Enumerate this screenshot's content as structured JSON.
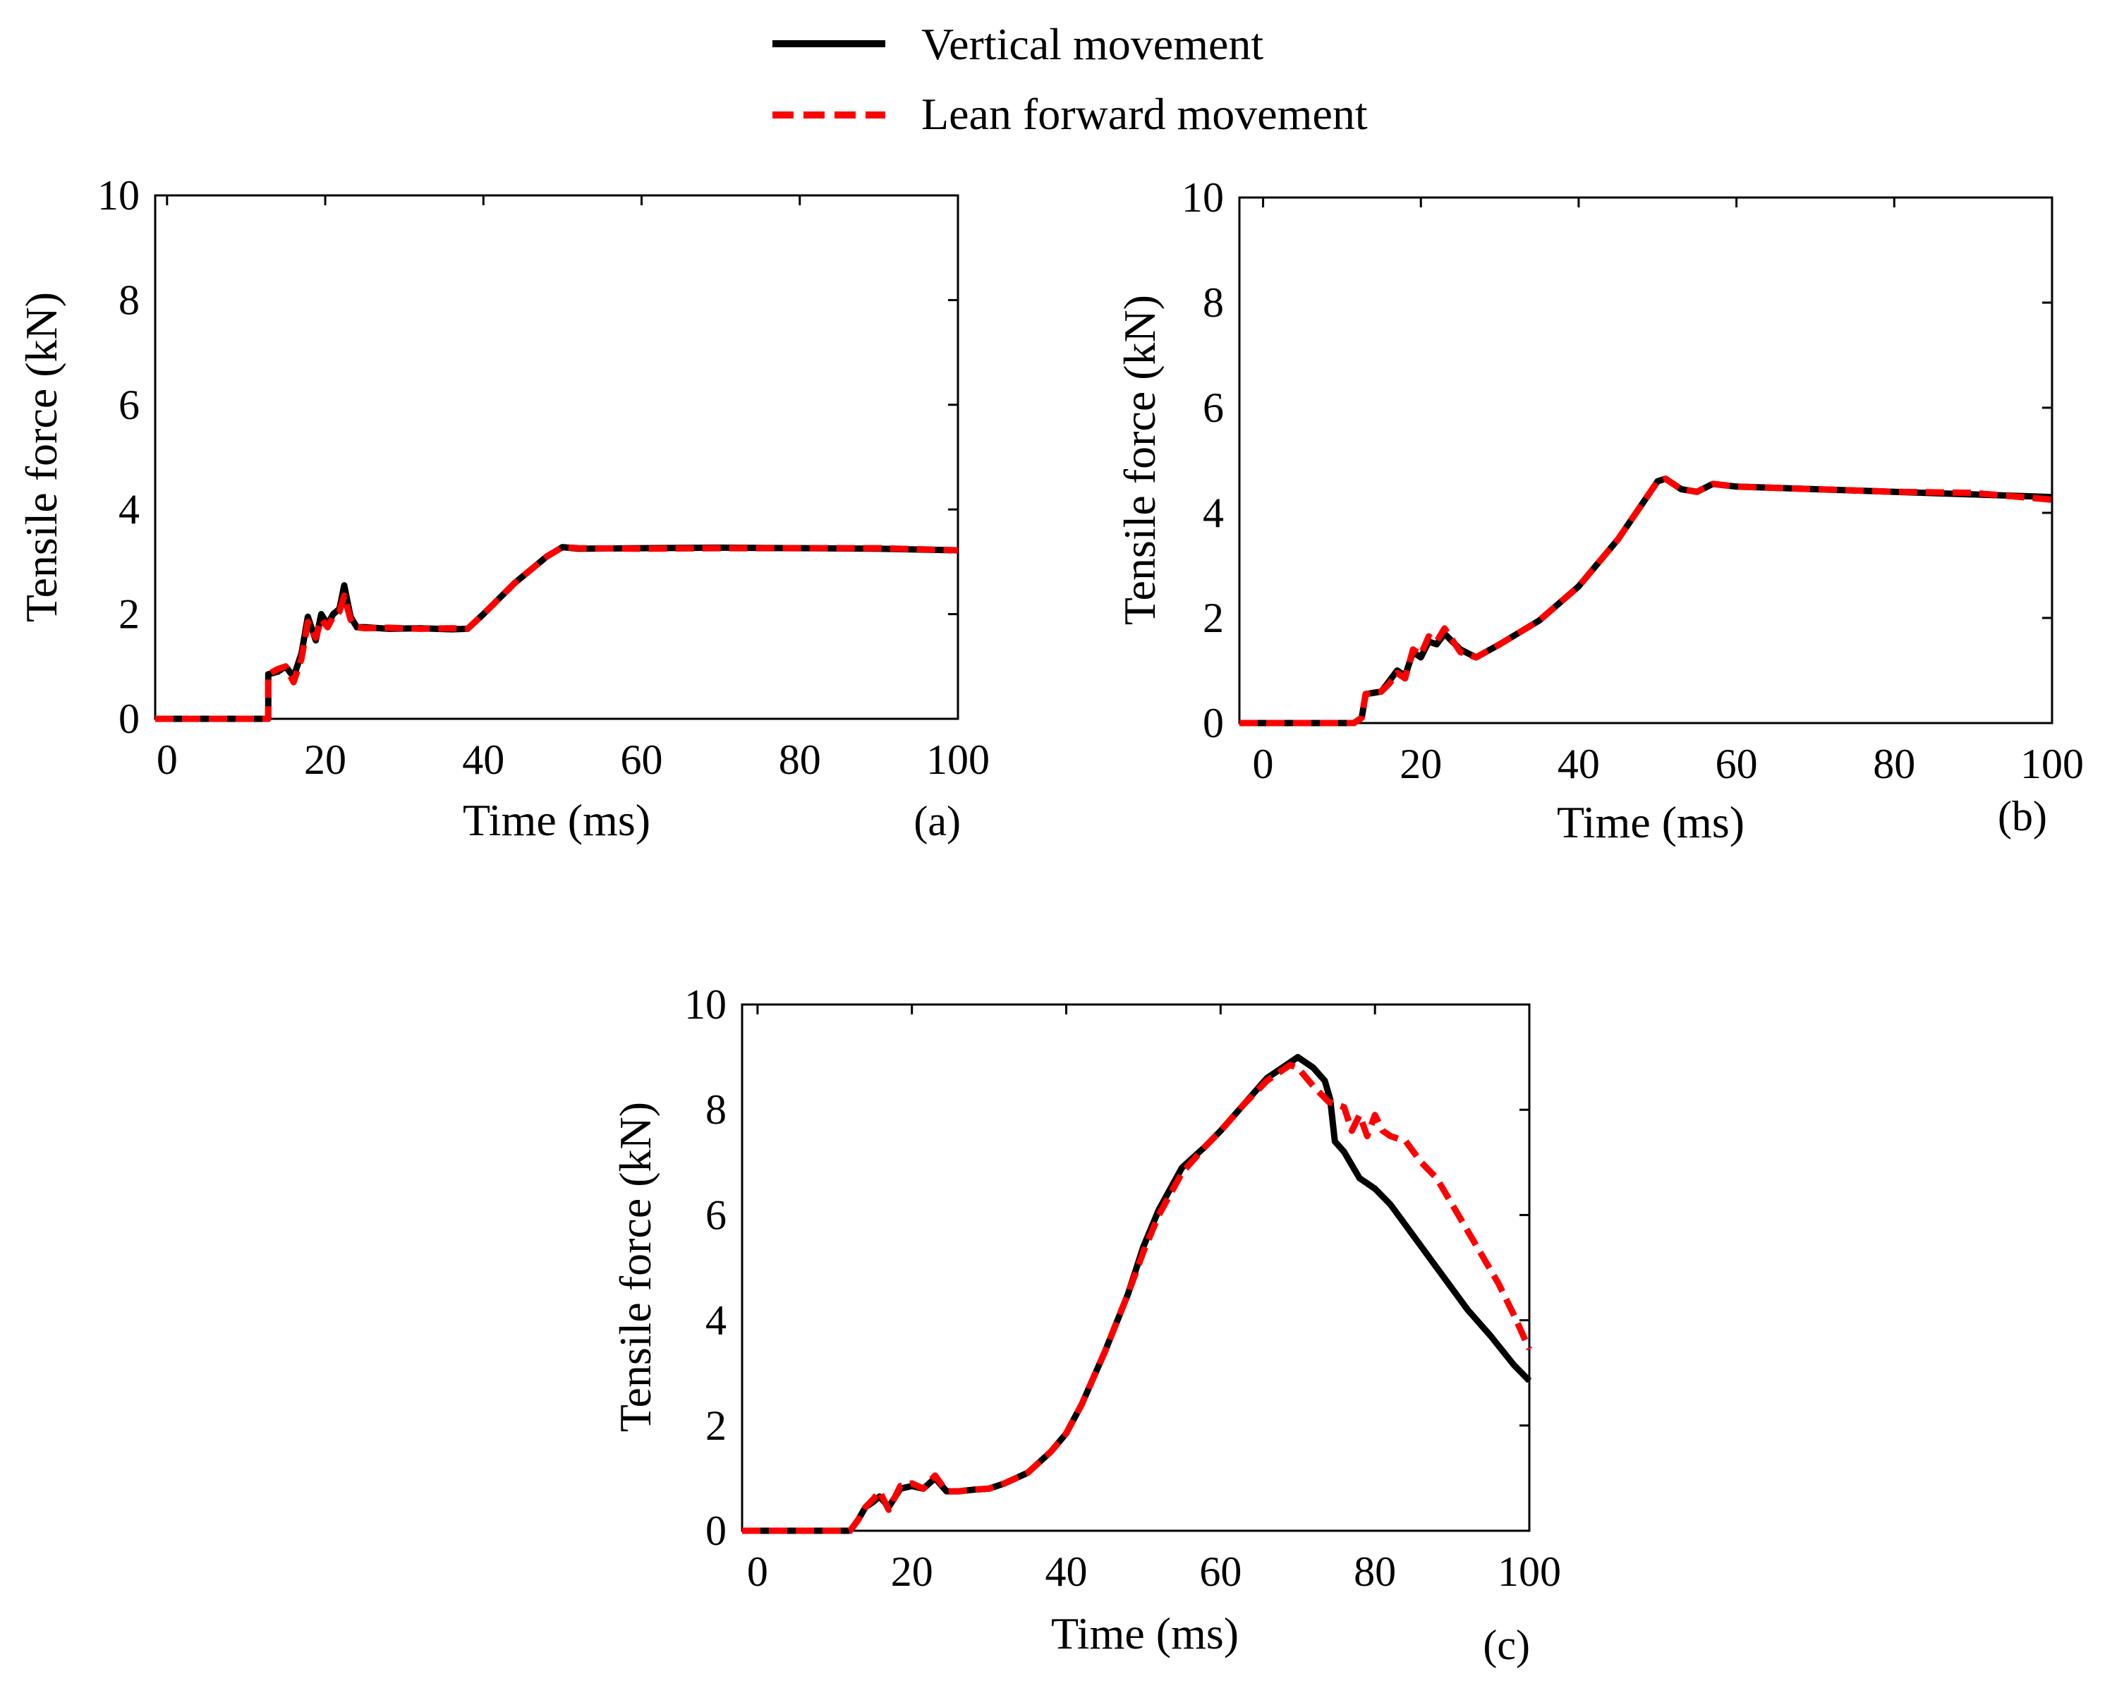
{
  "legend": {
    "items": [
      {
        "label": "Vertical movement",
        "color": "#000000",
        "style": "solid"
      },
      {
        "label": "Lean forward movement",
        "color": "#ff0000",
        "style": "dashed"
      }
    ]
  },
  "chart_data": [
    {
      "type": "line",
      "panel_label": "(a)",
      "xlabel": "Time (ms)",
      "ylabel": "Tensile force (kN)",
      "xlim": [
        -1.5,
        100
      ],
      "ylim": [
        0,
        10
      ],
      "xticks": [
        0,
        20,
        40,
        60,
        80,
        100
      ],
      "yticks": [
        0,
        2,
        4,
        6,
        8,
        10
      ],
      "series": [
        {
          "name": "Vertical movement",
          "color": "#000000",
          "dash": "solid",
          "x": [
            -1.5,
            12.8,
            12.8,
            14,
            15,
            16,
            17,
            17.8,
            18.8,
            19.5,
            20.3,
            21,
            21.8,
            22.4,
            23.2,
            24,
            25,
            28,
            32,
            36,
            38,
            40,
            44,
            48,
            50,
            52,
            60,
            70,
            80,
            90,
            100
          ],
          "y": [
            0,
            0,
            0.85,
            0.9,
            1.0,
            0.8,
            1.25,
            1.95,
            1.5,
            2.0,
            1.8,
            2.0,
            2.1,
            2.55,
            1.95,
            1.75,
            1.75,
            1.72,
            1.73,
            1.71,
            1.72,
            2.0,
            2.6,
            3.1,
            3.28,
            3.25,
            3.26,
            3.27,
            3.26,
            3.25,
            3.22
          ]
        },
        {
          "name": "Lean forward movement",
          "color": "#ff0000",
          "dash": "dashed",
          "x": [
            -1.5,
            12.8,
            12.8,
            14,
            15,
            16,
            17,
            17.8,
            18.8,
            19.5,
            20.3,
            21,
            21.8,
            22.4,
            23.2,
            24,
            25,
            28,
            32,
            36,
            38,
            40,
            44,
            48,
            50,
            52,
            60,
            70,
            80,
            90,
            100
          ],
          "y": [
            0,
            0,
            0.85,
            0.95,
            1.0,
            0.7,
            1.15,
            1.85,
            1.55,
            1.9,
            1.75,
            1.95,
            2.05,
            2.35,
            1.9,
            1.75,
            1.73,
            1.74,
            1.72,
            1.73,
            1.72,
            2.0,
            2.6,
            3.1,
            3.28,
            3.26,
            3.25,
            3.26,
            3.26,
            3.26,
            3.22
          ]
        }
      ]
    },
    {
      "type": "line",
      "panel_label": "(b)",
      "xlabel": "Time (ms)",
      "ylabel": "Tensile force (kN)",
      "xlim": [
        -3,
        100
      ],
      "ylim": [
        0,
        10
      ],
      "xticks": [
        0,
        20,
        40,
        60,
        80,
        100
      ],
      "yticks": [
        0,
        2,
        4,
        6,
        8,
        10
      ],
      "series": [
        {
          "name": "Vertical movement",
          "color": "#000000",
          "dash": "solid",
          "x": [
            -3,
            11.5,
            12.5,
            13,
            15,
            16,
            17,
            18,
            19,
            20,
            21,
            22,
            23,
            25,
            27,
            30,
            35,
            40,
            45,
            50,
            51,
            53,
            55,
            57,
            60,
            70,
            80,
            90,
            100
          ],
          "y": [
            0,
            0,
            0.1,
            0.55,
            0.6,
            0.8,
            1.0,
            0.9,
            1.35,
            1.25,
            1.55,
            1.5,
            1.7,
            1.4,
            1.25,
            1.5,
            1.95,
            2.6,
            3.5,
            4.6,
            4.65,
            4.45,
            4.4,
            4.55,
            4.5,
            4.45,
            4.4,
            4.35,
            4.3
          ]
        },
        {
          "name": "Lean forward movement",
          "color": "#ff0000",
          "dash": "dashed",
          "x": [
            -3,
            11.5,
            12.5,
            13,
            15,
            16,
            17,
            18,
            19,
            20,
            21,
            22,
            23,
            25,
            27,
            30,
            35,
            40,
            45,
            50,
            51,
            53,
            55,
            57,
            60,
            70,
            80,
            90,
            100
          ],
          "y": [
            0,
            0,
            0.1,
            0.55,
            0.6,
            0.75,
            0.95,
            0.85,
            1.4,
            1.3,
            1.65,
            1.55,
            1.8,
            1.35,
            1.25,
            1.5,
            1.95,
            2.6,
            3.5,
            4.6,
            4.65,
            4.45,
            4.4,
            4.55,
            4.5,
            4.45,
            4.4,
            4.38,
            4.25
          ]
        }
      ]
    },
    {
      "type": "line",
      "panel_label": "(c)",
      "xlabel": "Time (ms)",
      "ylabel": "Tensile force (kN)",
      "xlim": [
        -2,
        100
      ],
      "ylim": [
        0,
        10
      ],
      "xticks": [
        0,
        20,
        40,
        60,
        80,
        100
      ],
      "yticks": [
        0,
        2,
        4,
        6,
        8,
        10
      ],
      "series": [
        {
          "name": "Vertical movement",
          "color": "#000000",
          "dash": "solid",
          "x": [
            -2,
            12,
            13,
            14,
            15,
            15.8,
            17,
            18.5,
            20,
            21.5,
            23,
            24.5,
            26,
            28,
            30,
            32,
            35,
            38,
            40,
            42,
            45,
            48,
            50,
            52,
            55,
            58,
            60,
            63,
            66,
            69,
            70,
            72,
            73.5,
            74.2,
            74.8,
            76,
            78,
            80,
            82,
            85,
            88,
            90,
            92,
            95,
            98,
            100
          ],
          "y": [
            0,
            0,
            0.2,
            0.45,
            0.55,
            0.65,
            0.45,
            0.8,
            0.85,
            0.8,
            1.0,
            0.75,
            0.75,
            0.78,
            0.8,
            0.9,
            1.1,
            1.5,
            1.85,
            2.4,
            3.4,
            4.5,
            5.4,
            6.1,
            6.9,
            7.3,
            7.6,
            8.1,
            8.6,
            8.9,
            9.0,
            8.8,
            8.55,
            8.2,
            7.4,
            7.2,
            6.7,
            6.5,
            6.2,
            5.6,
            5.0,
            4.6,
            4.2,
            3.7,
            3.15,
            2.85
          ]
        },
        {
          "name": "Lean forward movement",
          "color": "#ff0000",
          "dash": "dashed",
          "x": [
            -2,
            12,
            13,
            14,
            15,
            15.8,
            17,
            18.5,
            20,
            21.5,
            23,
            24.5,
            26,
            28,
            30,
            32,
            35,
            38,
            40,
            42,
            45,
            48,
            50,
            52,
            55,
            58,
            60,
            63,
            66,
            69,
            70,
            72,
            74,
            76,
            77,
            78,
            79,
            80,
            81,
            82,
            84,
            86,
            88,
            90,
            92,
            94,
            96,
            98,
            100
          ],
          "y": [
            0,
            0,
            0.2,
            0.45,
            0.6,
            0.75,
            0.4,
            0.85,
            0.9,
            0.8,
            1.05,
            0.75,
            0.75,
            0.78,
            0.8,
            0.9,
            1.1,
            1.5,
            1.85,
            2.4,
            3.4,
            4.5,
            5.3,
            6.0,
            6.8,
            7.3,
            7.6,
            8.1,
            8.55,
            8.85,
            8.8,
            8.45,
            8.15,
            8.05,
            7.6,
            7.9,
            7.5,
            7.9,
            7.6,
            7.5,
            7.4,
            7.0,
            6.7,
            6.2,
            5.7,
            5.2,
            4.7,
            4.1,
            3.45
          ]
        }
      ]
    }
  ]
}
